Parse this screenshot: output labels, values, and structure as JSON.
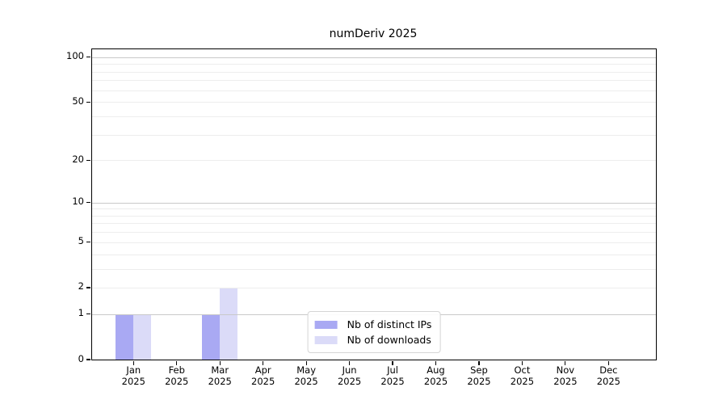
{
  "chart_data": {
    "type": "bar",
    "title": "numDeriv 2025",
    "categories": [
      "Jan",
      "Feb",
      "Mar",
      "Apr",
      "May",
      "Jun",
      "Jul",
      "Aug",
      "Sep",
      "Oct",
      "Nov",
      "Dec"
    ],
    "year_label": "2025",
    "series": [
      {
        "name": "Nb of distinct IPs",
        "color": "#a9a9f3",
        "values": [
          1,
          0,
          1,
          0,
          0,
          0,
          0,
          0,
          0,
          0,
          0,
          0
        ]
      },
      {
        "name": "Nb of downloads",
        "color": "#dbdbf8",
        "values": [
          1,
          0,
          2,
          0,
          0,
          0,
          0,
          0,
          0,
          0,
          0,
          0
        ]
      }
    ],
    "xlabel": "",
    "ylabel": "",
    "yscale": "log1p",
    "ylim": [
      0,
      113
    ],
    "yticks": [
      {
        "label": "100",
        "value": 100
      },
      {
        "label": "50",
        "value": 50
      },
      {
        "label": "20",
        "value": 20
      },
      {
        "label": "10",
        "value": 10
      },
      {
        "label": "5",
        "value": 5
      },
      {
        "label": "2",
        "value": 2
      },
      {
        "label": "1",
        "value": 1
      },
      {
        "label": "0",
        "value": 0
      }
    ],
    "major_gridlines": [
      1,
      10,
      100
    ],
    "minor_gridlines": [
      2,
      3,
      4,
      5,
      6,
      7,
      8,
      9,
      20,
      30,
      40,
      50,
      60,
      70,
      80,
      90
    ],
    "grid_color_major": "#c9c9c9",
    "grid_color_minor": "#ededed",
    "legend_position": "lower center",
    "grid": "on"
  }
}
